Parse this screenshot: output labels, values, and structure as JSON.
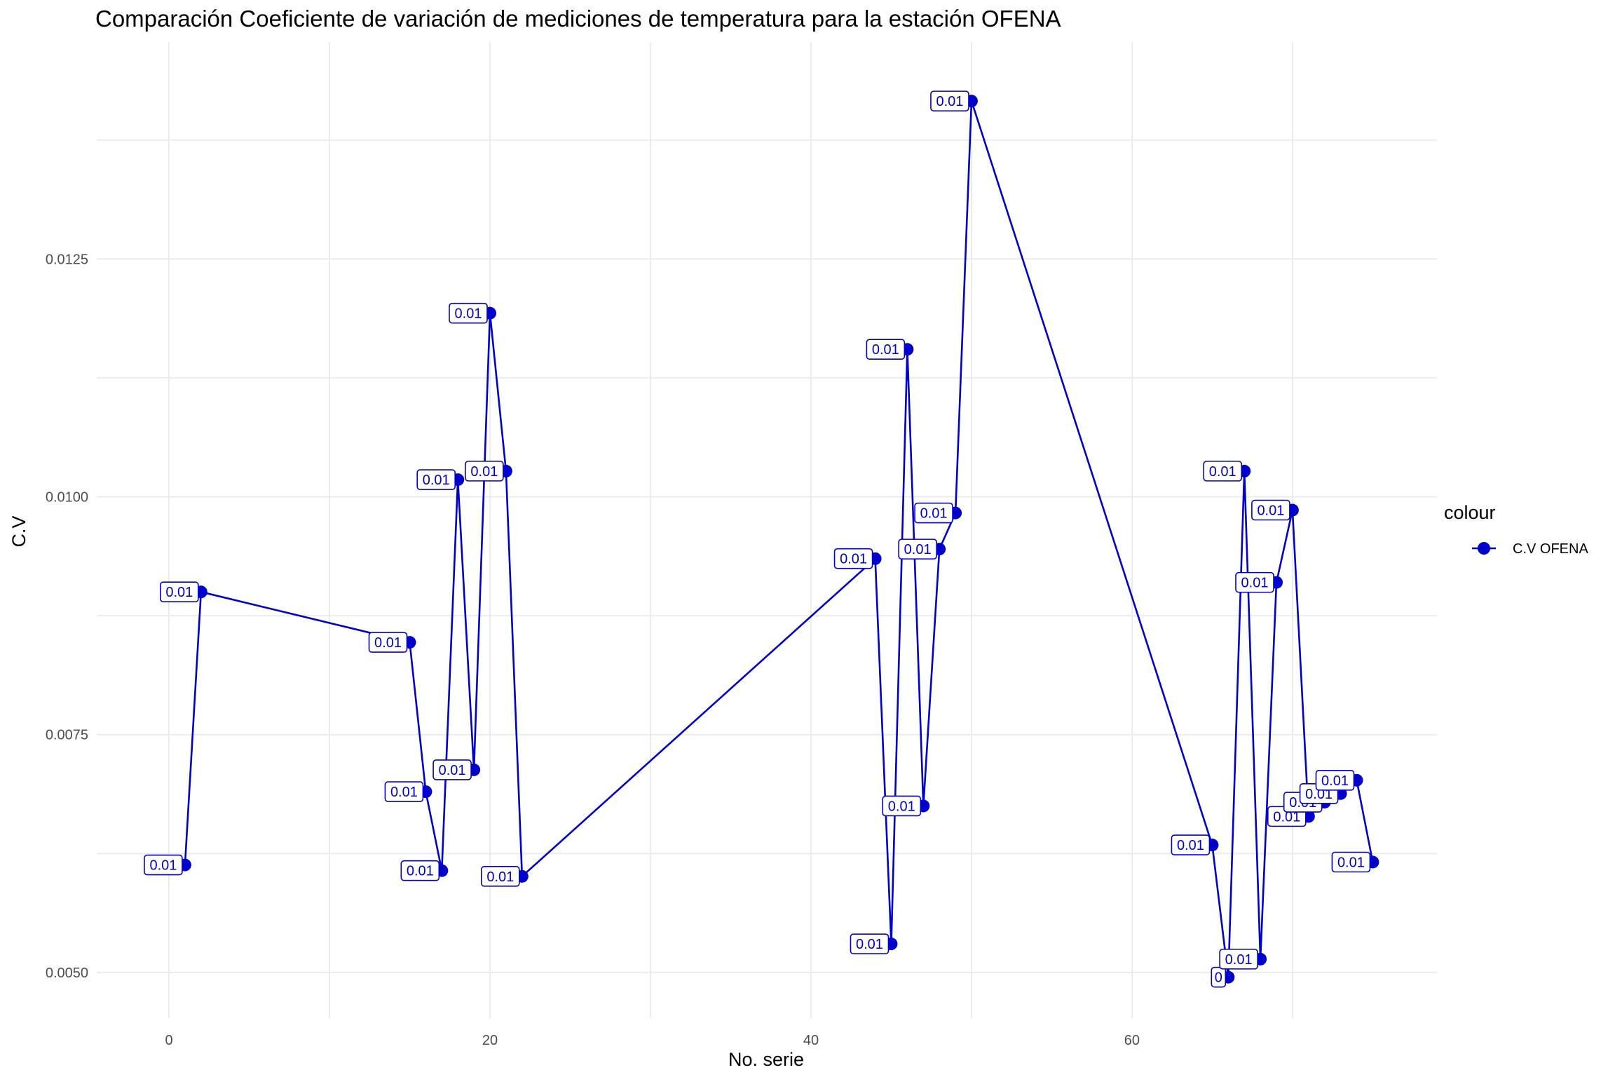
{
  "chart_data": {
    "type": "line",
    "title": "Comparación Coeficiente de variación de mediciones de temperatura para la estación OFENA",
    "xlabel": "No. serie",
    "ylabel": "C.V",
    "xlim": [
      -4.5,
      79
    ],
    "ylim": [
      0.00452,
      0.01478
    ],
    "x_ticks": [
      0,
      20,
      40,
      60
    ],
    "x_tick_labels": [
      "0",
      "20",
      "40",
      "60"
    ],
    "y_ticks": [
      0.005,
      0.0075,
      0.01,
      0.0125
    ],
    "y_tick_labels": [
      "0.0050",
      "0.0075",
      "0.0100",
      "0.0125"
    ],
    "grid": true,
    "legend": {
      "title": "colour",
      "position": "right"
    },
    "series": [
      {
        "name": "C.V OFENA",
        "color": "#0000cc",
        "points": [
          {
            "x": 1,
            "y": 0.00613,
            "label": "0.01"
          },
          {
            "x": 2,
            "y": 0.009,
            "label": "0.01"
          },
          {
            "x": 15,
            "y": 0.00847,
            "label": "0.01"
          },
          {
            "x": 16,
            "y": 0.0069,
            "label": "0.01"
          },
          {
            "x": 17,
            "y": 0.00607,
            "label": "0.01"
          },
          {
            "x": 18,
            "y": 0.01018,
            "label": "0.01"
          },
          {
            "x": 19,
            "y": 0.00713,
            "label": "0.01"
          },
          {
            "x": 20,
            "y": 0.01193,
            "label": "0.01"
          },
          {
            "x": 21,
            "y": 0.01027,
            "label": "0.01"
          },
          {
            "x": 22,
            "y": 0.00601,
            "label": "0.01"
          },
          {
            "x": 44,
            "y": 0.00935,
            "label": "0.01"
          },
          {
            "x": 45,
            "y": 0.0053,
            "label": "0.01"
          },
          {
            "x": 46,
            "y": 0.01155,
            "label": "0.01"
          },
          {
            "x": 47,
            "y": 0.00675,
            "label": "0.01"
          },
          {
            "x": 48,
            "y": 0.00945,
            "label": "0.01"
          },
          {
            "x": 49,
            "y": 0.00983,
            "label": "0.01"
          },
          {
            "x": 50,
            "y": 0.01416,
            "label": "0.01"
          },
          {
            "x": 65,
            "y": 0.00634,
            "label": "0.01"
          },
          {
            "x": 66,
            "y": 0.00495,
            "label": "0"
          },
          {
            "x": 67,
            "y": 0.01027,
            "label": "0.01"
          },
          {
            "x": 68,
            "y": 0.00514,
            "label": "0.01"
          },
          {
            "x": 69,
            "y": 0.0091,
            "label": "0.01"
          },
          {
            "x": 70,
            "y": 0.00986,
            "label": "0.01"
          },
          {
            "x": 71,
            "y": 0.00664,
            "label": "0.01"
          },
          {
            "x": 72,
            "y": 0.00679,
            "label": "0.01"
          },
          {
            "x": 73,
            "y": 0.00688,
            "label": "0.01"
          },
          {
            "x": 74,
            "y": 0.00702,
            "label": "0.01"
          },
          {
            "x": 75,
            "y": 0.00616,
            "label": "0.01"
          }
        ]
      }
    ]
  }
}
